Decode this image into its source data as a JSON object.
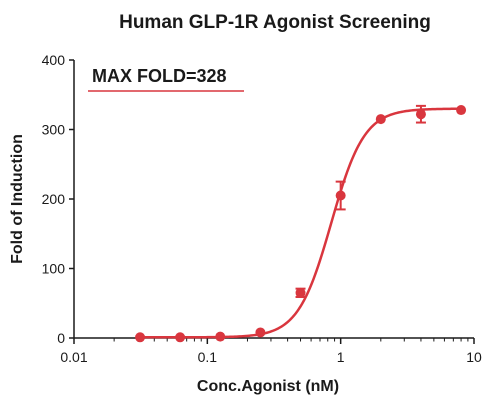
{
  "chart_data": {
    "type": "scatter",
    "title": "Human GLP-1R Agonist Screening",
    "annotation": "MAX FOLD=328",
    "xlabel": "Conc.Agonist (nM)",
    "ylabel": "Fold of Induction",
    "x_scale": "log",
    "xlim": [
      0.01,
      10
    ],
    "ylim": [
      0,
      400
    ],
    "x_ticks": [
      0.01,
      0.1,
      1,
      10
    ],
    "x_tick_labels": [
      "0.01",
      "0.1",
      "1",
      "10"
    ],
    "y_ticks": [
      0,
      100,
      200,
      300,
      400
    ],
    "y_tick_labels": [
      "0",
      "100",
      "200",
      "300",
      "400"
    ],
    "grid": false,
    "color": "#d9363e",
    "series": [
      {
        "x": [
          0.0313,
          0.0625,
          0.125,
          0.25,
          0.5,
          1,
          2,
          4,
          8
        ],
        "y": [
          1,
          1,
          2,
          8,
          65,
          205,
          315,
          322,
          328
        ],
        "error": [
          0,
          0,
          0,
          0,
          6,
          20,
          0,
          12,
          0
        ]
      }
    ],
    "fit_curve": {
      "model": "four-parameter logistic",
      "bottom": 1,
      "top": 330,
      "ec50": 0.85,
      "hill": 3.5
    }
  }
}
